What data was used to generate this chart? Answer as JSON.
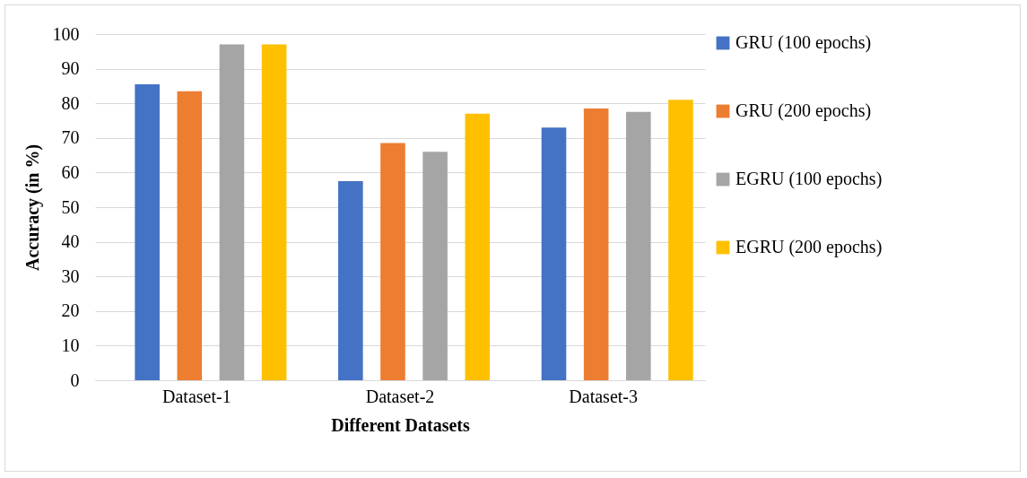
{
  "chart_data": {
    "type": "bar",
    "xlabel": "Different Datasets",
    "ylabel": "Accuracy (in %)",
    "categories": [
      "Dataset-1",
      "Dataset-2",
      "Dataset-3"
    ],
    "series": [
      {
        "name": "GRU (100 epochs)",
        "color": "#4472c4",
        "values": [
          85.5,
          57.5,
          73
        ]
      },
      {
        "name": "GRU (200 epochs)",
        "color": "#ed7d31",
        "values": [
          83.5,
          68.5,
          78.5
        ]
      },
      {
        "name": "EGRU (100 epochs)",
        "color": "#a5a5a5",
        "values": [
          97,
          66,
          77.5
        ]
      },
      {
        "name": "EGRU (200 epochs)",
        "color": "#ffc000",
        "values": [
          97,
          77,
          81
        ]
      }
    ],
    "ylim": [
      0,
      100
    ],
    "yticks": [
      0,
      10,
      20,
      30,
      40,
      50,
      60,
      70,
      80,
      90,
      100
    ],
    "grid": "y",
    "legend": "right"
  }
}
